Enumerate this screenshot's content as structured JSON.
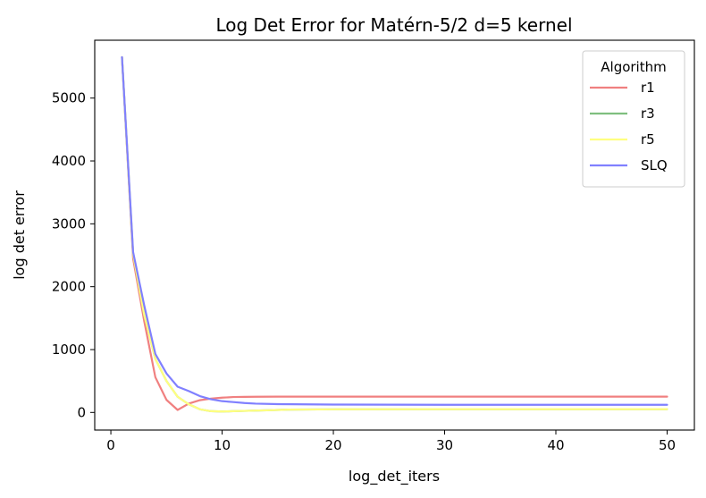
{
  "chart_data": {
    "type": "line",
    "title": "Log Det Error for Matérn-5/2 d=5 kernel",
    "xlabel": "log_det_iters",
    "ylabel": "log det error",
    "xlim": [
      -1.45,
      52.45
    ],
    "ylim": [
      -280,
      5920
    ],
    "xticks": [
      0,
      10,
      20,
      30,
      40,
      50
    ],
    "yticks": [
      0,
      1000,
      2000,
      3000,
      4000,
      5000
    ],
    "grid": false,
    "legend": {
      "title": "Algorithm",
      "position": "top-right"
    },
    "series": [
      {
        "name": "r1",
        "color": "#f08080",
        "points": [
          [
            1,
            5650
          ],
          [
            2,
            2450
          ],
          [
            3,
            1450
          ],
          [
            4,
            560
          ],
          [
            5,
            200
          ],
          [
            6,
            40
          ],
          [
            7,
            140
          ],
          [
            8,
            195
          ],
          [
            9,
            220
          ],
          [
            10,
            235
          ],
          [
            11,
            245
          ],
          [
            12,
            248
          ],
          [
            13,
            250
          ],
          [
            15,
            252
          ],
          [
            20,
            252
          ],
          [
            30,
            252
          ],
          [
            40,
            252
          ],
          [
            50,
            252
          ]
        ]
      },
      {
        "name": "r3",
        "color": "#7fbf7f",
        "points": [
          [
            1,
            5650
          ],
          [
            2,
            2520
          ],
          [
            3,
            1550
          ],
          [
            4,
            850
          ],
          [
            5,
            500
          ],
          [
            6,
            250
          ],
          [
            7,
            130
          ],
          [
            8,
            50
          ],
          [
            9,
            20
          ],
          [
            10,
            15
          ],
          [
            11,
            20
          ],
          [
            12,
            25
          ],
          [
            14,
            35
          ],
          [
            16,
            45
          ],
          [
            20,
            50
          ],
          [
            30,
            52
          ],
          [
            40,
            52
          ],
          [
            50,
            52
          ]
        ]
      },
      {
        "name": "r5",
        "color": "#ffff80",
        "points": [
          [
            1,
            5650
          ],
          [
            2,
            2520
          ],
          [
            3,
            1550
          ],
          [
            4,
            850
          ],
          [
            5,
            500
          ],
          [
            6,
            250
          ],
          [
            7,
            130
          ],
          [
            8,
            50
          ],
          [
            9,
            20
          ],
          [
            10,
            15
          ],
          [
            11,
            20
          ],
          [
            12,
            25
          ],
          [
            14,
            35
          ],
          [
            16,
            45
          ],
          [
            20,
            50
          ],
          [
            30,
            52
          ],
          [
            40,
            52
          ],
          [
            50,
            52
          ]
        ]
      },
      {
        "name": "SLQ",
        "color": "#8080ff",
        "points": [
          [
            1,
            5650
          ],
          [
            2,
            2550
          ],
          [
            3,
            1700
          ],
          [
            4,
            930
          ],
          [
            5,
            620
          ],
          [
            6,
            410
          ],
          [
            7,
            340
          ],
          [
            8,
            260
          ],
          [
            9,
            210
          ],
          [
            10,
            180
          ],
          [
            11,
            165
          ],
          [
            12,
            150
          ],
          [
            13,
            140
          ],
          [
            15,
            132
          ],
          [
            20,
            125
          ],
          [
            30,
            122
          ],
          [
            40,
            122
          ],
          [
            50,
            122
          ]
        ]
      }
    ]
  }
}
